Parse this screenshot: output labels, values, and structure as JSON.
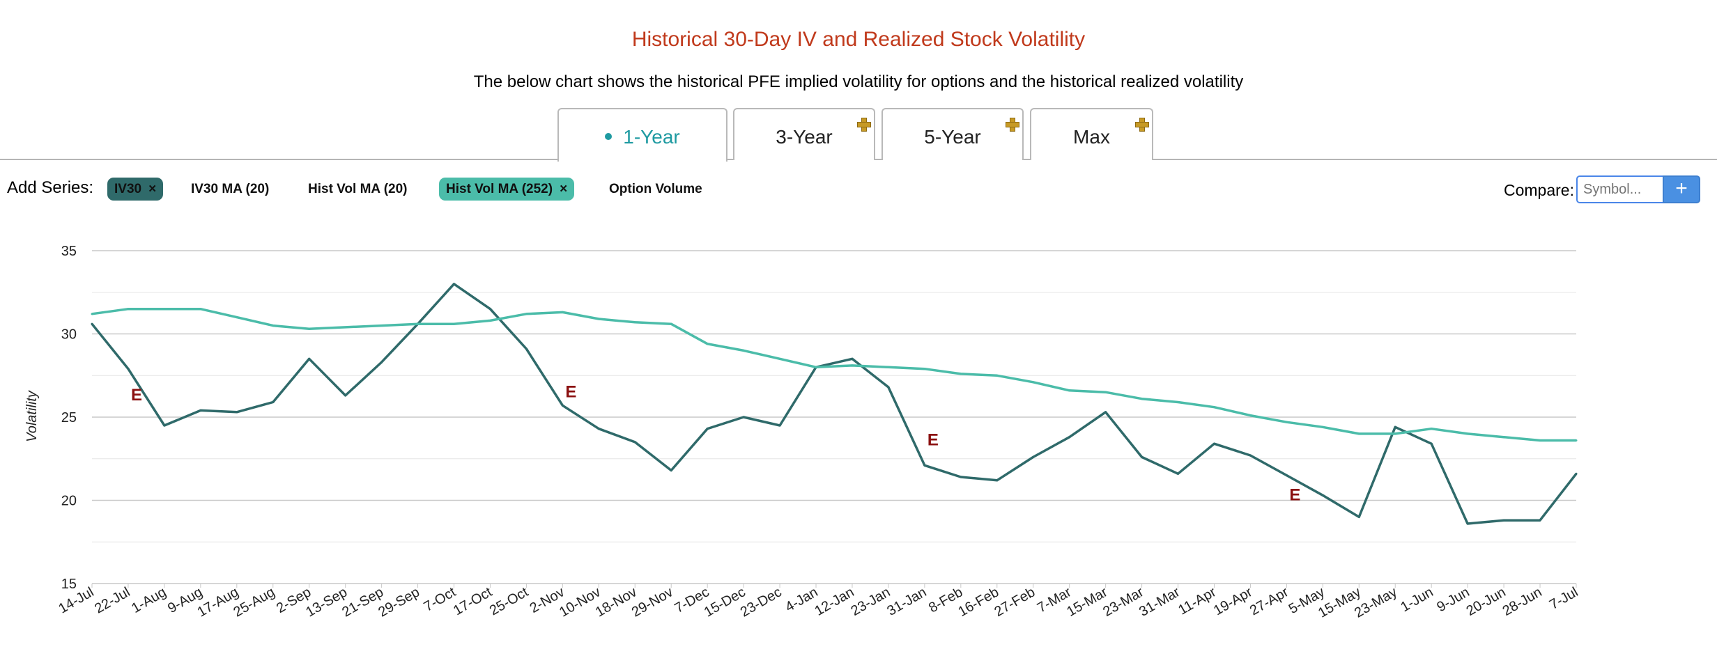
{
  "header": {
    "title": "Historical 30-Day IV and Realized Stock Volatility",
    "subtitle": "The below chart shows the historical PFE implied volatility for options and the historical realized volatility"
  },
  "tabs": [
    {
      "label": "1-Year",
      "active": true
    },
    {
      "label": "3-Year",
      "active": false
    },
    {
      "label": "5-Year",
      "active": false
    },
    {
      "label": "Max",
      "active": false
    }
  ],
  "series_controls": {
    "add_label": "Add Series:",
    "items": [
      {
        "label": "IV30",
        "selected": true,
        "close": "×",
        "color": "#2f6a6a"
      },
      {
        "label": "IV30 MA (20)",
        "selected": false
      },
      {
        "label": "Hist Vol MA (20)",
        "selected": false
      },
      {
        "label": "Hist Vol MA (252)",
        "selected": true,
        "close": "×",
        "color": "#4bbca9"
      },
      {
        "label": "Option Volume",
        "selected": false
      }
    ],
    "compare_label": "Compare:",
    "compare_placeholder": "Symbol...",
    "compare_button": "+"
  },
  "chart_data": {
    "type": "line",
    "title": "",
    "xlabel": "",
    "ylabel": "Volatility",
    "ylim": [
      15,
      35
    ],
    "yticks": [
      15,
      20,
      25,
      30,
      35
    ],
    "grid": true,
    "categories": [
      "14-Jul",
      "22-Jul",
      "1-Aug",
      "9-Aug",
      "17-Aug",
      "25-Aug",
      "2-Sep",
      "13-Sep",
      "21-Sep",
      "29-Sep",
      "7-Oct",
      "17-Oct",
      "25-Oct",
      "2-Nov",
      "10-Nov",
      "18-Nov",
      "29-Nov",
      "7-Dec",
      "15-Dec",
      "23-Dec",
      "4-Jan",
      "12-Jan",
      "23-Jan",
      "31-Jan",
      "8-Feb",
      "16-Feb",
      "27-Feb",
      "7-Mar",
      "15-Mar",
      "23-Mar",
      "31-Mar",
      "11-Apr",
      "19-Apr",
      "27-Apr",
      "5-May",
      "15-May",
      "23-May",
      "1-Jun",
      "9-Jun",
      "20-Jun",
      "28-Jun",
      "7-Jul"
    ],
    "series": [
      {
        "name": "IV30",
        "color": "#2f6a6a",
        "values": [
          30.6,
          27.9,
          24.5,
          25.4,
          25.3,
          25.9,
          28.5,
          26.3,
          28.3,
          30.6,
          33.0,
          31.5,
          29.1,
          25.7,
          24.3,
          23.5,
          21.8,
          24.3,
          25.0,
          24.5,
          28.0,
          28.5,
          26.8,
          22.1,
          21.4,
          21.2,
          22.6,
          23.8,
          25.3,
          22.6,
          21.6,
          23.4,
          22.7,
          21.5,
          20.3,
          19.0,
          24.4,
          23.4,
          18.6,
          18.8,
          18.8,
          21.6
        ]
      },
      {
        "name": "Hist Vol MA (252)",
        "color": "#4bbca9",
        "values": [
          31.2,
          31.5,
          31.5,
          31.5,
          31.0,
          30.5,
          30.3,
          30.4,
          30.5,
          30.6,
          30.6,
          30.8,
          31.2,
          31.3,
          30.9,
          30.7,
          30.6,
          29.4,
          29.0,
          28.5,
          28.0,
          28.1,
          28.0,
          27.9,
          27.6,
          27.5,
          27.1,
          26.6,
          26.5,
          26.1,
          25.9,
          25.6,
          25.1,
          24.7,
          24.4,
          24.0,
          24.0,
          24.3,
          24.0,
          23.8,
          23.6,
          23.6
        ]
      }
    ],
    "events": [
      {
        "label": "E",
        "category": "22-Jul",
        "value": 26.0
      },
      {
        "label": "E",
        "category": "2-Nov",
        "value": 26.2
      },
      {
        "label": "E",
        "category": "31-Jan",
        "value": 23.3
      },
      {
        "label": "E",
        "category": "27-Apr",
        "value": 20.0
      }
    ]
  }
}
